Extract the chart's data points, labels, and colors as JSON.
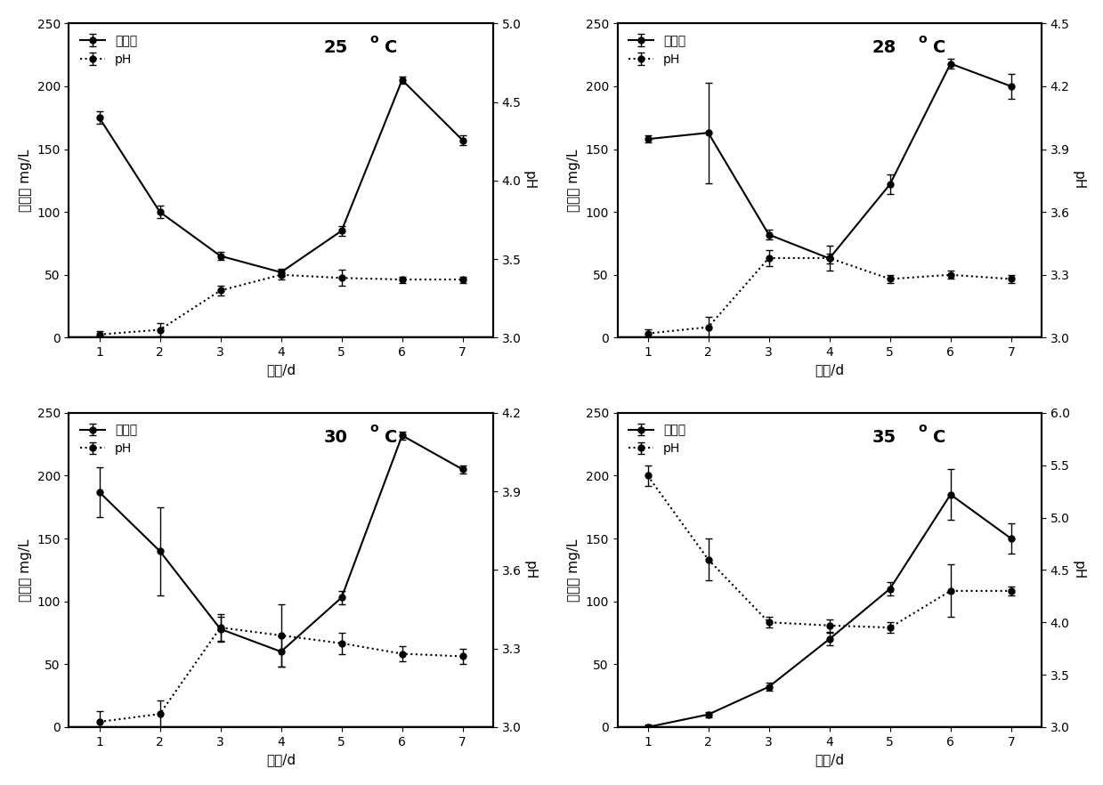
{
  "panels": [
    {
      "temp": "25",
      "sol_p": [
        175,
        100,
        65,
        52,
        85,
        205,
        157
      ],
      "sol_p_err": [
        5,
        5,
        3,
        3,
        4,
        3,
        4
      ],
      "ph": [
        3.02,
        3.05,
        3.3,
        3.4,
        3.38,
        3.37,
        3.37
      ],
      "ph_err": [
        0.02,
        0.04,
        0.03,
        0.03,
        0.05,
        0.02,
        0.02
      ],
      "ph_ylim": [
        3.0,
        5.0
      ],
      "ph_yticks": [
        3.0,
        3.5,
        4.0,
        4.5,
        5.0
      ]
    },
    {
      "temp": "28",
      "sol_p": [
        158,
        163,
        82,
        63,
        122,
        218,
        200
      ],
      "sol_p_err": [
        3,
        40,
        4,
        4,
        8,
        4,
        10
      ],
      "ph": [
        3.02,
        3.05,
        3.38,
        3.38,
        3.28,
        3.3,
        3.28
      ],
      "ph_err": [
        0.02,
        0.05,
        0.04,
        0.06,
        0.02,
        0.02,
        0.02
      ],
      "ph_ylim": [
        3.0,
        4.5
      ],
      "ph_yticks": [
        3.0,
        3.3,
        3.6,
        3.9,
        4.2,
        4.5
      ]
    },
    {
      "temp": "30",
      "sol_p": [
        187,
        140,
        78,
        60,
        103,
        232,
        205
      ],
      "sol_p_err": [
        20,
        35,
        10,
        12,
        5,
        3,
        3
      ],
      "ph": [
        3.02,
        3.05,
        3.38,
        3.35,
        3.32,
        3.28,
        3.27
      ],
      "ph_err": [
        0.04,
        0.05,
        0.05,
        0.12,
        0.04,
        0.03,
        0.03
      ],
      "ph_ylim": [
        3.0,
        4.2
      ],
      "ph_yticks": [
        3.0,
        3.3,
        3.6,
        3.9,
        4.2
      ]
    },
    {
      "temp": "35",
      "sol_p": [
        0,
        10,
        32,
        70,
        110,
        185,
        150
      ],
      "sol_p_err": [
        2,
        2,
        3,
        5,
        5,
        20,
        12
      ],
      "ph": [
        5.4,
        4.6,
        4.0,
        3.97,
        3.95,
        4.3,
        4.3
      ],
      "ph_err": [
        0.1,
        0.2,
        0.05,
        0.06,
        0.05,
        0.25,
        0.04
      ],
      "ph_ylim": [
        3.0,
        6.0
      ],
      "ph_yticks": [
        3.0,
        3.5,
        4.0,
        4.5,
        5.0,
        5.5,
        6.0
      ]
    }
  ],
  "x": [
    1,
    2,
    3,
    4,
    5,
    6,
    7
  ],
  "xlim": [
    0.5,
    7.5
  ],
  "xticks": [
    1,
    2,
    3,
    4,
    5,
    6,
    7
  ],
  "sol_p_ylim": [
    0,
    250
  ],
  "sol_p_yticks": [
    0,
    50,
    100,
    150,
    200,
    250
  ],
  "xlabel": "时间/d",
  "ylabel_left": "溶磷量 mg/L",
  "ylabel_right": "pH",
  "legend_sol": "溶磷量",
  "legend_ph": "pH",
  "line_color": "#000000",
  "background_color": "#ffffff",
  "fontsize_label": 11,
  "fontsize_tick": 10,
  "fontsize_legend": 10,
  "fontsize_temp": 14
}
